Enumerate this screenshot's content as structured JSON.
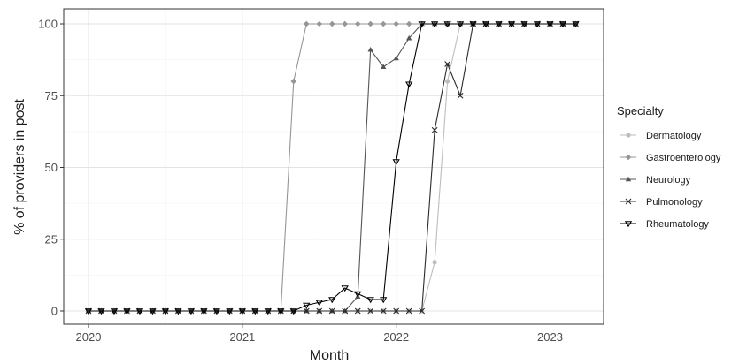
{
  "chart_data": {
    "type": "line",
    "title": "",
    "xlabel": "Month",
    "ylabel": "% of providers in post",
    "x_ticks": [
      "2020",
      "2021",
      "2022",
      "2023"
    ],
    "y_ticks": [
      "0",
      "25",
      "50",
      "75",
      "100"
    ],
    "xlim": [
      "2019-12-01",
      "2023-04-01"
    ],
    "ylim": [
      -3,
      105
    ],
    "grid": true,
    "legend": {
      "title": "Specialty",
      "position": "right"
    },
    "x_start": "2020-01",
    "series": [
      {
        "name": "Dermatology",
        "color": "#bdbdbd",
        "marker": "circle",
        "values": [
          0,
          0,
          0,
          0,
          0,
          0,
          0,
          0,
          0,
          0,
          0,
          0,
          0,
          0,
          0,
          0,
          0,
          0,
          0,
          0,
          0,
          0,
          0,
          0,
          0,
          0,
          0,
          17,
          80,
          100,
          100,
          100,
          100,
          100,
          100,
          100,
          100,
          100,
          100
        ]
      },
      {
        "name": "Gastroenterology",
        "color": "#969696",
        "marker": "diamond",
        "values": [
          0,
          0,
          0,
          0,
          0,
          0,
          0,
          0,
          0,
          0,
          0,
          0,
          0,
          0,
          0,
          0,
          80,
          100,
          100,
          100,
          100,
          100,
          100,
          100,
          100,
          100,
          100,
          100,
          100,
          100,
          100,
          100,
          100,
          100,
          100,
          100,
          100,
          100,
          100
        ]
      },
      {
        "name": "Neurology",
        "color": "#555555",
        "marker": "triangle-up",
        "values": [
          0,
          0,
          0,
          0,
          0,
          0,
          0,
          0,
          0,
          0,
          0,
          0,
          0,
          0,
          0,
          0,
          0,
          0,
          0,
          0,
          0,
          5,
          91,
          85,
          88,
          95,
          100,
          100,
          100,
          100,
          100,
          100,
          100,
          100,
          100,
          100,
          100,
          100,
          100
        ]
      },
      {
        "name": "Pulmonology",
        "color": "#2b2b2b",
        "marker": "x",
        "values": [
          0,
          0,
          0,
          0,
          0,
          0,
          0,
          0,
          0,
          0,
          0,
          0,
          0,
          0,
          0,
          0,
          0,
          0,
          0,
          0,
          0,
          0,
          0,
          0,
          0,
          0,
          0,
          63,
          86,
          75,
          100,
          100,
          100,
          100,
          100,
          100,
          100,
          100,
          100
        ]
      },
      {
        "name": "Rheumatology",
        "color": "#000000",
        "marker": "triangle-down",
        "values": [
          0,
          0,
          0,
          0,
          0,
          0,
          0,
          0,
          0,
          0,
          0,
          0,
          0,
          0,
          0,
          0,
          0,
          2,
          3,
          4,
          8,
          6,
          4,
          4,
          52,
          79,
          100,
          100,
          100,
          100,
          100,
          100,
          100,
          100,
          100,
          100,
          100,
          100,
          100
        ]
      }
    ]
  }
}
